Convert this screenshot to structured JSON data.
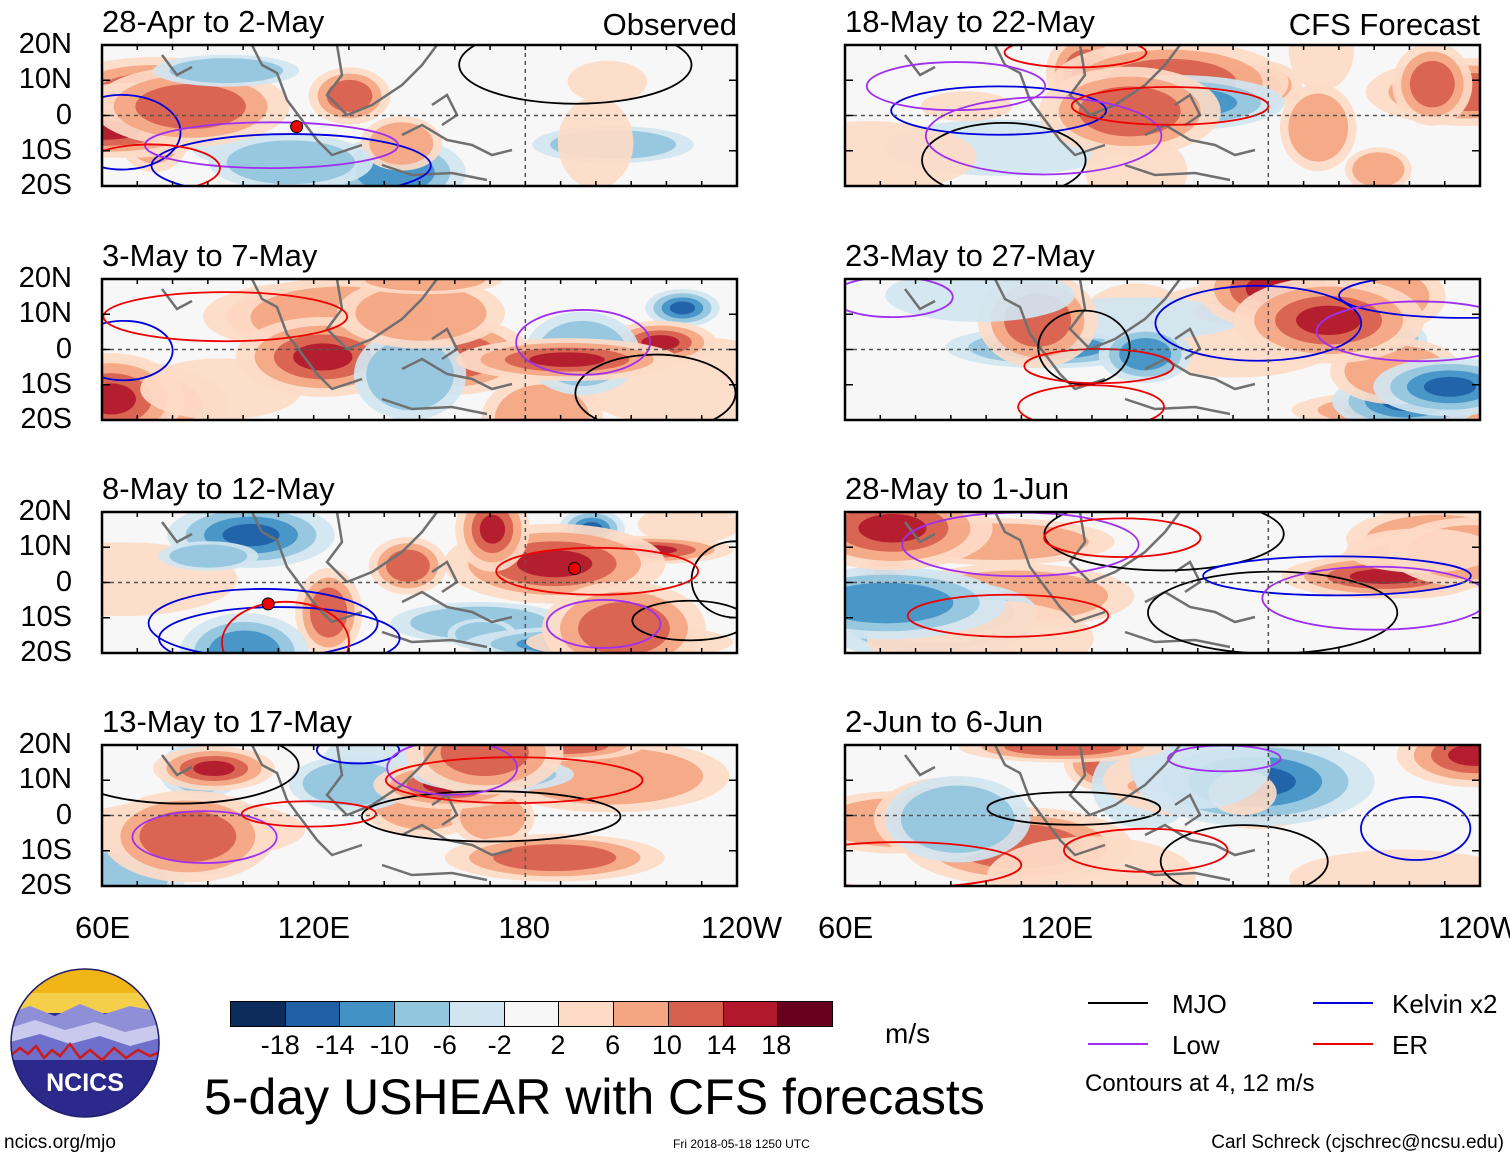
{
  "observed_label": "Observed",
  "forecast_label": "CFS Forecast",
  "lat_labels": [
    "20N",
    "10N",
    "0",
    "10S",
    "20S"
  ],
  "lon_labels": [
    "60E",
    "120E",
    "180",
    "120W"
  ],
  "panels": [
    {
      "title": "28-Apr to 2-May",
      "note": "Observed",
      "cyclones": 1
    },
    {
      "title": "3-May to 7-May",
      "note": "",
      "cyclones": 0
    },
    {
      "title": "8-May to 12-May",
      "note": "",
      "cyclones": 2
    },
    {
      "title": "13-May to 17-May",
      "note": "",
      "cyclones": 0
    },
    {
      "title": "18-May to 22-May",
      "note": "CFS Forecast",
      "cyclones": 0
    },
    {
      "title": "23-May to 27-May",
      "note": "",
      "cyclones": 0
    },
    {
      "title": "28-May to 1-Jun",
      "note": "",
      "cyclones": 0
    },
    {
      "title": "2-Jun to 6-Jun",
      "note": "",
      "cyclones": 0
    }
  ],
  "colorbar": {
    "ticks": [
      "-18",
      "-14",
      "-10",
      "-6",
      "-2",
      "2",
      "6",
      "10",
      "14",
      "18"
    ],
    "colors": [
      "#0c2c5e",
      "#1f5fa6",
      "#4292c6",
      "#92c5de",
      "#d1e5f0",
      "#f7f7f7",
      "#fddbc7",
      "#f4a582",
      "#d6604d",
      "#b2182b",
      "#67001f"
    ],
    "units": "m/s"
  },
  "legend": {
    "items": [
      {
        "label": "MJO",
        "color": "#000000"
      },
      {
        "label": "Kelvin x2",
        "color": "#0000dd"
      },
      {
        "label": "Low",
        "color": "#a030f0"
      },
      {
        "label": "ER",
        "color": "#ee0000"
      }
    ],
    "note": "Contours at 4, 12 m/s"
  },
  "logo_text": "NCICS",
  "main_title": "5-day USHEAR with CFS forecasts",
  "website": "ncics.org/mjo",
  "timestamp": "Fri 2018-05-18 1250 UTC",
  "author": "Carl Schreck (cjschrec@ncsu.edu)"
}
